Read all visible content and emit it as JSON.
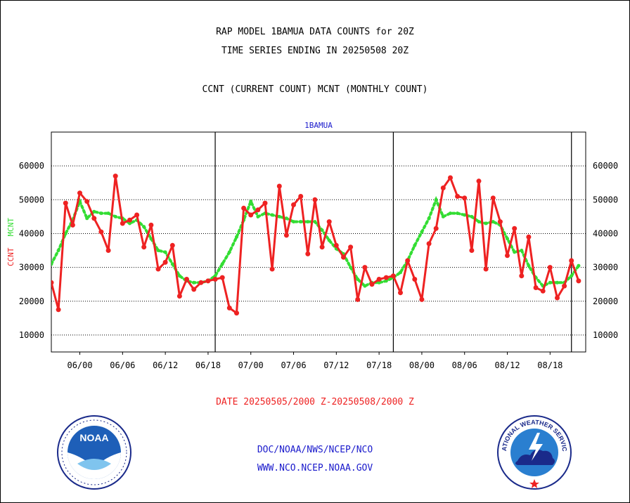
{
  "header": {
    "title_line1": "RAP MODEL 1BAMUA DATA COUNTS for 20Z",
    "title_line2": "TIME SERIES ENDING IN 20250508 20Z",
    "title_line3": "CCNT (CURRENT COUNT) MCNT (MONTHLY COUNT)"
  },
  "chart_data": {
    "type": "line",
    "title": "1BAMUA",
    "ylabel_left_ccnt": "CCNT",
    "ylabel_left_mcnt": "MCNT",
    "ylim": [
      5000,
      70000
    ],
    "xlim": [
      -4,
      71
    ],
    "y_ticks": [
      10000,
      20000,
      30000,
      40000,
      50000,
      60000
    ],
    "x_ticks": [
      {
        "label": "06/00",
        "x": 0
      },
      {
        "label": "06/06",
        "x": 6
      },
      {
        "label": "06/12",
        "x": 12
      },
      {
        "label": "06/18",
        "x": 18
      },
      {
        "label": "07/00",
        "x": 24
      },
      {
        "label": "07/06",
        "x": 30
      },
      {
        "label": "07/12",
        "x": 36
      },
      {
        "label": "07/18",
        "x": 42
      },
      {
        "label": "08/00",
        "x": 48
      },
      {
        "label": "08/06",
        "x": 54
      },
      {
        "label": "08/12",
        "x": 60
      },
      {
        "label": "08/18",
        "x": 66
      }
    ],
    "day_boundaries": [
      19,
      44,
      69
    ],
    "grid": true,
    "series": [
      {
        "name": "CCNT",
        "color": "#ee2222",
        "style": "solid",
        "points": [
          [
            -4,
            25500
          ],
          [
            -3,
            17500
          ],
          [
            -2,
            49000
          ],
          [
            -1,
            42500
          ],
          [
            0,
            52000
          ],
          [
            1,
            49500
          ],
          [
            2,
            44500
          ],
          [
            3,
            40500
          ],
          [
            4,
            35000
          ],
          [
            5,
            57000
          ],
          [
            6,
            43000
          ],
          [
            7,
            44000
          ],
          [
            8,
            45500
          ],
          [
            9,
            36000
          ],
          [
            10,
            42500
          ],
          [
            11,
            29500
          ],
          [
            12,
            31500
          ],
          [
            13,
            36500
          ],
          [
            14,
            21500
          ],
          [
            15,
            26500
          ],
          [
            16,
            23500
          ],
          [
            17,
            25500
          ],
          [
            18,
            26000
          ],
          [
            19,
            26500
          ],
          [
            20,
            27000
          ],
          [
            21,
            18000
          ],
          [
            22,
            16500
          ],
          [
            23,
            47500
          ],
          [
            24,
            45500
          ],
          [
            25,
            47000
          ],
          [
            26,
            49000
          ],
          [
            27,
            29500
          ],
          [
            28,
            54000
          ],
          [
            29,
            39500
          ],
          [
            30,
            48500
          ],
          [
            31,
            51000
          ],
          [
            32,
            34000
          ],
          [
            33,
            50000
          ],
          [
            34,
            36000
          ],
          [
            35,
            43500
          ],
          [
            36,
            36500
          ],
          [
            37,
            33000
          ],
          [
            38,
            36000
          ],
          [
            39,
            20500
          ],
          [
            40,
            30000
          ],
          [
            41,
            25000
          ],
          [
            42,
            26500
          ],
          [
            43,
            27000
          ],
          [
            44,
            27500
          ],
          [
            45,
            22500
          ],
          [
            46,
            32000
          ],
          [
            47,
            26500
          ],
          [
            48,
            20500
          ],
          [
            49,
            37000
          ],
          [
            50,
            41500
          ],
          [
            51,
            53500
          ],
          [
            52,
            56500
          ],
          [
            53,
            51000
          ],
          [
            54,
            50500
          ],
          [
            55,
            35000
          ],
          [
            56,
            55500
          ],
          [
            57,
            29500
          ],
          [
            58,
            50500
          ],
          [
            59,
            43500
          ],
          [
            60,
            33500
          ],
          [
            61,
            41500
          ],
          [
            62,
            27500
          ],
          [
            63,
            39000
          ],
          [
            64,
            24000
          ],
          [
            65,
            23000
          ],
          [
            66,
            30000
          ],
          [
            67,
            21000
          ],
          [
            68,
            24500
          ],
          [
            69,
            32000
          ],
          [
            70,
            26000
          ]
        ]
      },
      {
        "name": "MCNT",
        "color": "#33dd33",
        "style": "dotted",
        "points": [
          [
            -4,
            31000
          ],
          [
            -3,
            35000
          ],
          [
            -2,
            40000
          ],
          [
            -1,
            44000
          ],
          [
            0,
            49500
          ],
          [
            1,
            44500
          ],
          [
            2,
            46500
          ],
          [
            3,
            46000
          ],
          [
            4,
            46000
          ],
          [
            5,
            45000
          ],
          [
            6,
            44500
          ],
          [
            7,
            43000
          ],
          [
            8,
            44000
          ],
          [
            9,
            42000
          ],
          [
            10,
            38500
          ],
          [
            11,
            35000
          ],
          [
            12,
            34500
          ],
          [
            13,
            31000
          ],
          [
            14,
            27500
          ],
          [
            15,
            26000
          ],
          [
            16,
            25500
          ],
          [
            17,
            25500
          ],
          [
            18,
            26000
          ],
          [
            19,
            27500
          ],
          [
            20,
            31000
          ],
          [
            21,
            34500
          ],
          [
            22,
            39000
          ],
          [
            23,
            44000
          ],
          [
            24,
            49500
          ],
          [
            25,
            45000
          ],
          [
            26,
            46000
          ],
          [
            27,
            45500
          ],
          [
            28,
            45000
          ],
          [
            29,
            44500
          ],
          [
            30,
            43500
          ],
          [
            31,
            43500
          ],
          [
            32,
            43500
          ],
          [
            33,
            43500
          ],
          [
            34,
            41000
          ],
          [
            35,
            38000
          ],
          [
            36,
            35500
          ],
          [
            37,
            34000
          ],
          [
            38,
            30000
          ],
          [
            39,
            26500
          ],
          [
            40,
            24500
          ],
          [
            41,
            25500
          ],
          [
            42,
            25500
          ],
          [
            43,
            26000
          ],
          [
            44,
            27000
          ],
          [
            45,
            28500
          ],
          [
            46,
            32000
          ],
          [
            47,
            36500
          ],
          [
            48,
            40500
          ],
          [
            49,
            44500
          ],
          [
            50,
            50000
          ],
          [
            51,
            45000
          ],
          [
            52,
            46000
          ],
          [
            53,
            46000
          ],
          [
            54,
            45500
          ],
          [
            55,
            45000
          ],
          [
            56,
            43500
          ],
          [
            57,
            43000
          ],
          [
            58,
            43500
          ],
          [
            59,
            42500
          ],
          [
            60,
            38500
          ],
          [
            61,
            34500
          ],
          [
            62,
            35000
          ],
          [
            63,
            30500
          ],
          [
            64,
            27000
          ],
          [
            65,
            24500
          ],
          [
            66,
            25500
          ],
          [
            67,
            25500
          ],
          [
            68,
            25500
          ],
          [
            69,
            27500
          ],
          [
            70,
            30500
          ]
        ]
      }
    ]
  },
  "footer": {
    "date_range": "DATE 20250505/2000 Z-20250508/2000 Z",
    "org_path": "DOC/NOAA/NWS/NCEP/NCO",
    "website": "WWW.NCO.NCEP.NOAA.GOV"
  },
  "logos": {
    "noaa_text": "NOAA",
    "nws_text": "NATIONAL WEATHER SERVICE"
  }
}
